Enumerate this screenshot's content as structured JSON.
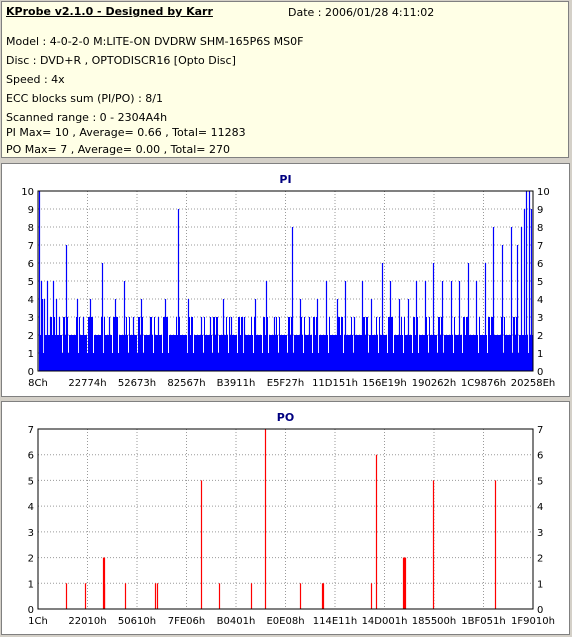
{
  "info": {
    "title": "KProbe v2.1.0 - Designed by Karr",
    "date": "Date : 2006/01/28 4:11:02",
    "lines": [
      "Model : 4-0-2-0 M:LITE-ON DVDRW SHM-165P6S MS0F",
      "Disc : DVD+R , OPTODISCR16 [Opto Disc]",
      "Speed : 4x",
      "ECC blocks sum (PI/PO) : 8/1",
      "Scanned range : 0 - 2304A4h",
      "PI Max= 10 , Average= 0.66 , Total= 11283",
      "PO Max= 7 , Average= 0.00 , Total= 270"
    ]
  },
  "chart_data": [
    {
      "type": "bar",
      "title": "PI",
      "color": "#0000ff",
      "ylim": [
        0,
        10
      ],
      "yticks": [
        0,
        1,
        2,
        3,
        4,
        5,
        6,
        7,
        8,
        9,
        10
      ],
      "xticks": [
        "8Ch",
        "22774h",
        "52673h",
        "82567h",
        "B3911h",
        "E5F27h",
        "11D151h",
        "156E19h",
        "190262h",
        "1C9876h",
        "20258Eh"
      ],
      "x_range": [
        0,
        2304
      ],
      "grid": true,
      "baseline_pattern": [
        2,
        2,
        3,
        2,
        2,
        3,
        2,
        1,
        2,
        3,
        2,
        2,
        1,
        2,
        3,
        2,
        2,
        2,
        3,
        2,
        1,
        2,
        2,
        3,
        2
      ],
      "spikes": [
        [
          5,
          10
        ],
        [
          12,
          5
        ],
        [
          20,
          4
        ],
        [
          30,
          4
        ],
        [
          40,
          5
        ],
        [
          55,
          3
        ],
        [
          70,
          5
        ],
        [
          85,
          4
        ],
        [
          100,
          3
        ],
        [
          130,
          7
        ],
        [
          180,
          4
        ],
        [
          210,
          3
        ],
        [
          240,
          4
        ],
        [
          300,
          6
        ],
        [
          330,
          3
        ],
        [
          360,
          4
        ],
        [
          400,
          5
        ],
        [
          440,
          3
        ],
        [
          480,
          4
        ],
        [
          520,
          3
        ],
        [
          560,
          3
        ],
        [
          592,
          4
        ],
        [
          650,
          9
        ],
        [
          700,
          4
        ],
        [
          760,
          3
        ],
        [
          800,
          3
        ],
        [
          860,
          4
        ],
        [
          900,
          3
        ],
        [
          960,
          3
        ],
        [
          1010,
          4
        ],
        [
          1060,
          5
        ],
        [
          1100,
          3
        ],
        [
          1180,
          8
        ],
        [
          1220,
          4
        ],
        [
          1260,
          3
        ],
        [
          1300,
          4
        ],
        [
          1340,
          5
        ],
        [
          1390,
          4
        ],
        [
          1430,
          5
        ],
        [
          1470,
          3
        ],
        [
          1510,
          5
        ],
        [
          1550,
          4
        ],
        [
          1600,
          6
        ],
        [
          1640,
          5
        ],
        [
          1680,
          4
        ],
        [
          1720,
          4
        ],
        [
          1760,
          5
        ],
        [
          1800,
          5
        ],
        [
          1840,
          6
        ],
        [
          1880,
          5
        ],
        [
          1920,
          5
        ],
        [
          1960,
          5
        ],
        [
          2000,
          6
        ],
        [
          2040,
          5
        ],
        [
          2080,
          6
        ],
        [
          2120,
          8
        ],
        [
          2160,
          7
        ],
        [
          2200,
          8
        ],
        [
          2230,
          7
        ],
        [
          2250,
          8
        ],
        [
          2260,
          9
        ],
        [
          2270,
          10
        ],
        [
          2285,
          10
        ],
        [
          2295,
          9
        ]
      ]
    },
    {
      "type": "bar",
      "title": "PO",
      "color": "#ff0000",
      "ylim": [
        0,
        7
      ],
      "yticks": [
        0,
        1,
        2,
        3,
        4,
        5,
        6,
        7
      ],
      "xticks": [
        "1Ch",
        "22010h",
        "50610h",
        "7FE06h",
        "B0401h",
        "E0E08h",
        "114E11h",
        "14D001h",
        "185500h",
        "1BF051h",
        "1F9010h"
      ],
      "x_range": [
        0,
        2304
      ],
      "grid": true,
      "spikes": [
        [
          131,
          1
        ],
        [
          220,
          1
        ],
        [
          303,
          2
        ],
        [
          306,
          2
        ],
        [
          309,
          1
        ],
        [
          406,
          1
        ],
        [
          546,
          1
        ],
        [
          555,
          1
        ],
        [
          761,
          5
        ],
        [
          842,
          1
        ],
        [
          990,
          1
        ],
        [
          1056,
          7
        ],
        [
          1220,
          1
        ],
        [
          1321,
          1
        ],
        [
          1327,
          1
        ],
        [
          1552,
          1
        ],
        [
          1573,
          6
        ],
        [
          1700,
          2
        ],
        [
          1703,
          2
        ],
        [
          1706,
          2
        ],
        [
          1840,
          5
        ],
        [
          2125,
          5
        ]
      ]
    }
  ]
}
